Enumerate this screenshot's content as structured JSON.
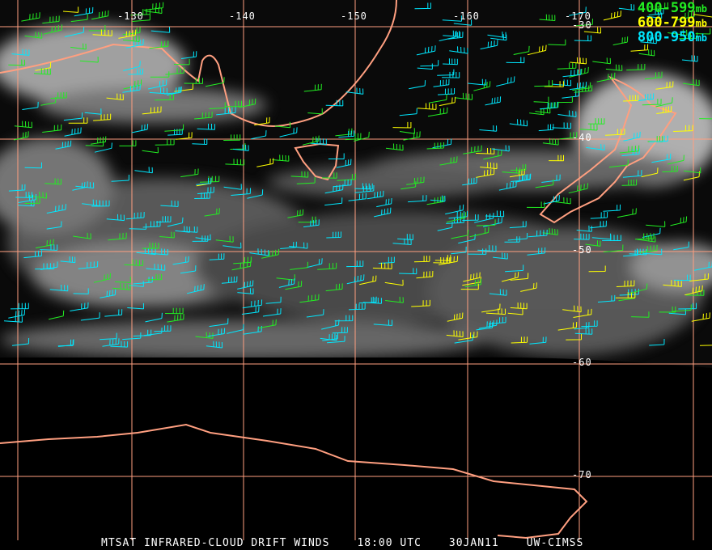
{
  "legend": [
    {
      "range": "400-599",
      "unit": "mb",
      "color": "#22ee22"
    },
    {
      "range": "600-799",
      "unit": "mb",
      "color": "#ffff00"
    },
    {
      "range": "800-950",
      "unit": "mb",
      "color": "#00e8ff"
    }
  ],
  "longitude_labels": [
    "-130",
    "-140",
    "-150",
    "-160",
    "-170"
  ],
  "latitude_labels": [
    "-30",
    "-40",
    "-50",
    "-60",
    "-70"
  ],
  "footer": {
    "product": "MTSAT INFRARED-CLOUD DRIFT WINDS",
    "time": "18:00 UTC",
    "date": "30JAN11",
    "source": "UW-CIMSS"
  },
  "colors": {
    "coastline": "#ff9f80",
    "grid": "#ff9f80",
    "background": "#000000"
  }
}
